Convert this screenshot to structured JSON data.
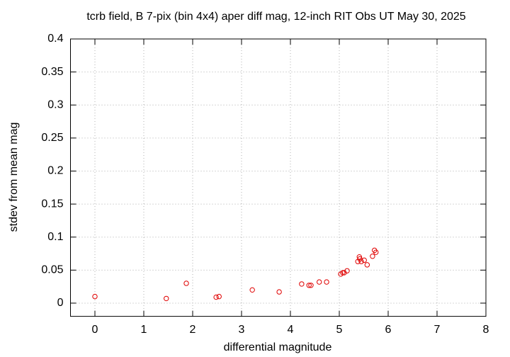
{
  "chart_data": {
    "type": "scatter",
    "title": "tcrb field, B 7-pix (bin 4x4) aper diff mag,  12-inch RIT Obs UT May 30, 2025",
    "xlabel": "differential magnitude",
    "ylabel": "stdev from mean mag",
    "xlim": [
      -0.5,
      8
    ],
    "xticks": [
      0,
      1,
      2,
      3,
      4,
      5,
      6,
      7,
      8
    ],
    "ylim": [
      -0.02,
      0.4
    ],
    "yticks": [
      0,
      0.05,
      0.1,
      0.15,
      0.2,
      0.25,
      0.3,
      0.35,
      0.4
    ],
    "grid": true,
    "color": "#e00000",
    "x": [
      0,
      1.46,
      1.87,
      2.48,
      2.54,
      3.22,
      3.77,
      4.23,
      4.38,
      4.42,
      4.59,
      4.74,
      5.03,
      5.07,
      5.1,
      5.16,
      5.38,
      5.41,
      5.42,
      5.45,
      5.51,
      5.57,
      5.68,
      5.72,
      5.75
    ],
    "values": [
      0.01,
      0.007,
      0.03,
      0.009,
      0.01,
      0.02,
      0.017,
      0.029,
      0.027,
      0.027,
      0.032,
      0.032,
      0.044,
      0.046,
      0.046,
      0.049,
      0.063,
      0.07,
      0.067,
      0.063,
      0.065,
      0.058,
      0.071,
      0.08,
      0.077
    ]
  }
}
